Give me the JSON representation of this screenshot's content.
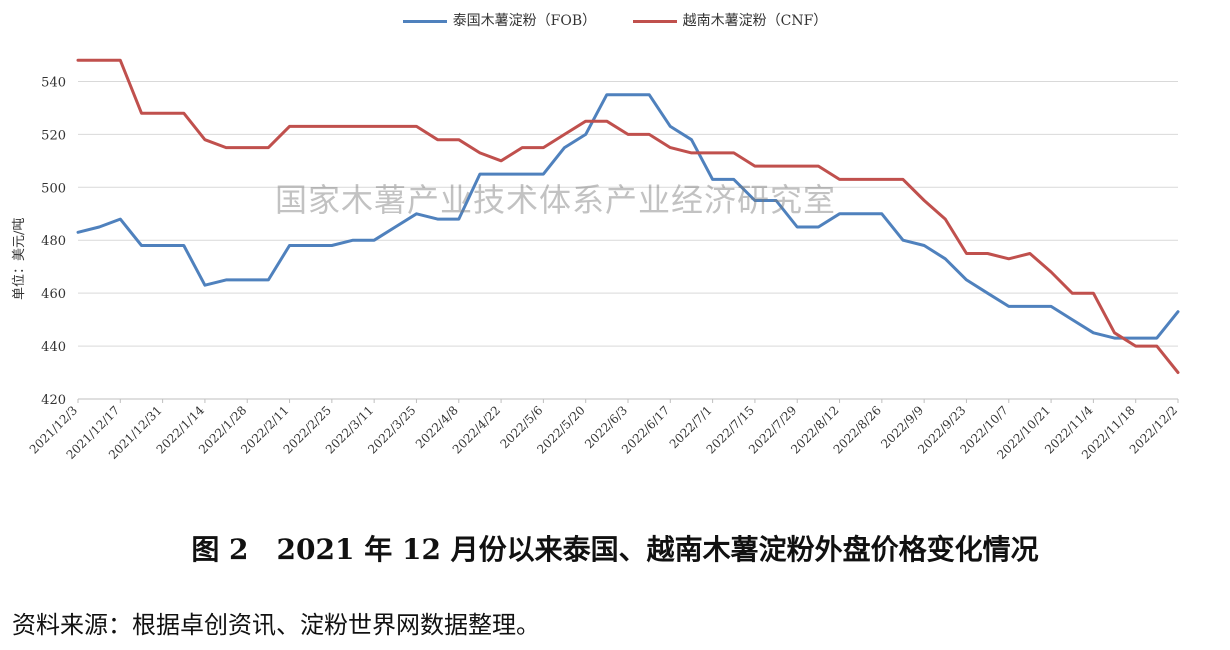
{
  "chart_data": {
    "type": "line",
    "ylabel": "单位：美元/吨",
    "ylim": [
      420,
      550
    ],
    "yticks": [
      420,
      440,
      460,
      480,
      500,
      520,
      540
    ],
    "grid": true,
    "legend_position": "top-center",
    "x_tick_labels": [
      "2021/12/3",
      "2021/12/17",
      "2021/12/31",
      "2022/1/14",
      "2022/1/28",
      "2022/2/11",
      "2022/2/25",
      "2022/3/11",
      "2022/3/25",
      "2022/4/8",
      "2022/4/22",
      "2022/5/6",
      "2022/5/20",
      "2022/6/3",
      "2022/6/17",
      "2022/7/1",
      "2022/7/15",
      "2022/7/29",
      "2022/8/12",
      "2022/8/26",
      "2022/9/9",
      "2022/9/23",
      "2022/10/7",
      "2022/10/21",
      "2022/11/4",
      "2022/11/18",
      "2022/12/2"
    ],
    "x": [
      "2021/12/3",
      "2021/12/10",
      "2021/12/17",
      "2021/12/24",
      "2021/12/31",
      "2022/1/7",
      "2022/1/14",
      "2022/1/21",
      "2022/1/28",
      "2022/2/4",
      "2022/2/11",
      "2022/2/18",
      "2022/2/25",
      "2022/3/4",
      "2022/3/11",
      "2022/3/18",
      "2022/3/25",
      "2022/4/1",
      "2022/4/8",
      "2022/4/15",
      "2022/4/22",
      "2022/4/29",
      "2022/5/6",
      "2022/5/13",
      "2022/5/20",
      "2022/5/27",
      "2022/6/3",
      "2022/6/10",
      "2022/6/17",
      "2022/6/24",
      "2022/7/1",
      "2022/7/8",
      "2022/7/15",
      "2022/7/22",
      "2022/7/29",
      "2022/8/5",
      "2022/8/12",
      "2022/8/19",
      "2022/8/26",
      "2022/9/2",
      "2022/9/9",
      "2022/9/16",
      "2022/9/23",
      "2022/9/30",
      "2022/10/7",
      "2022/10/14",
      "2022/10/21",
      "2022/10/28",
      "2022/11/4",
      "2022/11/11",
      "2022/11/18",
      "2022/11/25",
      "2022/12/2"
    ],
    "series": [
      {
        "name": "泰国木薯淀粉（FOB）",
        "color": "#4f81bd",
        "values": [
          483,
          485,
          488,
          478,
          478,
          478,
          463,
          465,
          465,
          465,
          478,
          478,
          478,
          480,
          480,
          485,
          490,
          488,
          488,
          505,
          505,
          505,
          505,
          515,
          520,
          535,
          535,
          535,
          523,
          518,
          503,
          503,
          495,
          495,
          485,
          485,
          490,
          490,
          490,
          480,
          478,
          473,
          465,
          460,
          455,
          455,
          455,
          450,
          445,
          443,
          443,
          443,
          453
        ]
      },
      {
        "name": "越南木薯淀粉（CNF）",
        "color": "#c0504d",
        "values": [
          548,
          548,
          548,
          528,
          528,
          528,
          518,
          515,
          515,
          515,
          523,
          523,
          523,
          523,
          523,
          523,
          523,
          518,
          518,
          513,
          510,
          515,
          515,
          520,
          525,
          525,
          520,
          520,
          515,
          513,
          513,
          513,
          508,
          508,
          508,
          508,
          503,
          503,
          503,
          503,
          495,
          488,
          475,
          475,
          473,
          475,
          468,
          460,
          460,
          445,
          440,
          440,
          430
        ]
      }
    ]
  },
  "watermark": "国家木薯产业技术体系产业经济研究室",
  "caption": "图 2　2021 年 12 月份以来泰国、越南木薯淀粉外盘价格变化情况",
  "source": "资料来源：根据卓创资讯、淀粉世界网数据整理。"
}
